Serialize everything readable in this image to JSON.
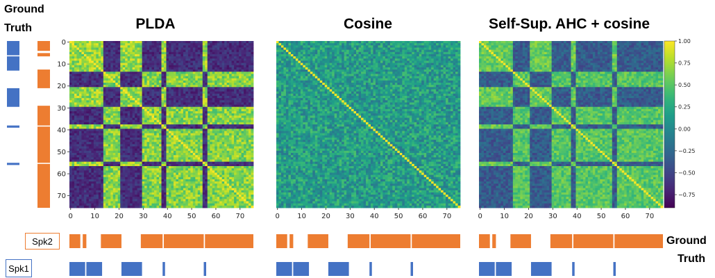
{
  "ground_truth_label": [
    "Ground",
    "Truth"
  ],
  "ground_truth_label_right": [
    "Ground",
    "Truth"
  ],
  "legend": {
    "spk2": "Spk2",
    "spk1": "Spk1"
  },
  "colors": {
    "spk2": "#ED7D31",
    "spk1": "#4472C4",
    "colormap": "viridis",
    "colormap_stops": [
      "#440154",
      "#482878",
      "#3E4989",
      "#31688E",
      "#26828E",
      "#1F9E89",
      "#35B779",
      "#6DCD59",
      "#B4DE2C",
      "#FDE725"
    ]
  },
  "chart_data": [
    {
      "type": "heatmap",
      "title": "PLDA",
      "x_ticks": [
        0,
        10,
        20,
        30,
        40,
        50,
        60,
        70
      ],
      "y_ticks": [
        0,
        10,
        20,
        30,
        40,
        50,
        60,
        70
      ],
      "xlim": [
        0,
        76
      ],
      "ylim": [
        0,
        76
      ]
    },
    {
      "type": "heatmap",
      "title": "Cosine",
      "x_ticks": [
        0,
        10,
        20,
        30,
        40,
        50,
        60,
        70
      ],
      "xlim": [
        0,
        76
      ],
      "ylim": [
        0,
        76
      ]
    },
    {
      "type": "heatmap",
      "title": "Self-Sup. AHC + cosine",
      "x_ticks": [
        0,
        10,
        20,
        30,
        40,
        50,
        60,
        70
      ],
      "xlim": [
        0,
        76
      ],
      "ylim": [
        0,
        76
      ],
      "colorbar": {
        "range": [
          -0.9,
          1.0
        ],
        "ticks": [
          "1.00",
          "0.75",
          "0.50",
          "0.25",
          "0.00",
          "−0.25",
          "−0.50",
          "−0.75"
        ],
        "tick_values": [
          1.0,
          0.75,
          0.5,
          0.25,
          0.0,
          -0.25,
          -0.5,
          -0.75
        ]
      }
    }
  ],
  "speaker_segments": {
    "spk2": [
      [
        0,
        4.5
      ],
      [
        5.5,
        7
      ],
      [
        13,
        21.5
      ],
      [
        29.5,
        38.5
      ],
      [
        39,
        55.5
      ],
      [
        56,
        76
      ]
    ],
    "spk1": [
      [
        0,
        6.5
      ],
      [
        7,
        13.5
      ],
      [
        21.5,
        30
      ],
      [
        38.5,
        39.5
      ],
      [
        55.5,
        56.5
      ]
    ]
  }
}
